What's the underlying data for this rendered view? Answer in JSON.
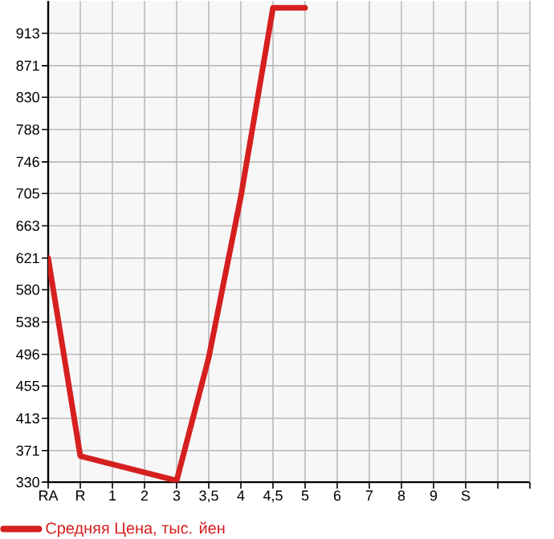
{
  "chart_data": {
    "type": "line",
    "categories": [
      "RA",
      "R",
      "1",
      "2",
      "3",
      "3,5",
      "4",
      "4,5",
      "5",
      "6",
      "7",
      "8",
      "9",
      "S",
      null
    ],
    "series": [
      {
        "name": "Средняя Цена, тыс. йен",
        "color": "#d61f1f",
        "values": [
          621,
          364,
          null,
          null,
          332,
          492,
          701,
          946,
          946,
          null,
          null,
          null,
          null,
          null,
          null
        ]
      }
    ],
    "ylim": [
      330,
      955
    ],
    "yticks": [
      330,
      371,
      413,
      455,
      496,
      538,
      580,
      621,
      663,
      705,
      746,
      788,
      830,
      871,
      913
    ],
    "grid": true,
    "legend": "bottom left",
    "marker": "none",
    "line_style": "solid"
  }
}
